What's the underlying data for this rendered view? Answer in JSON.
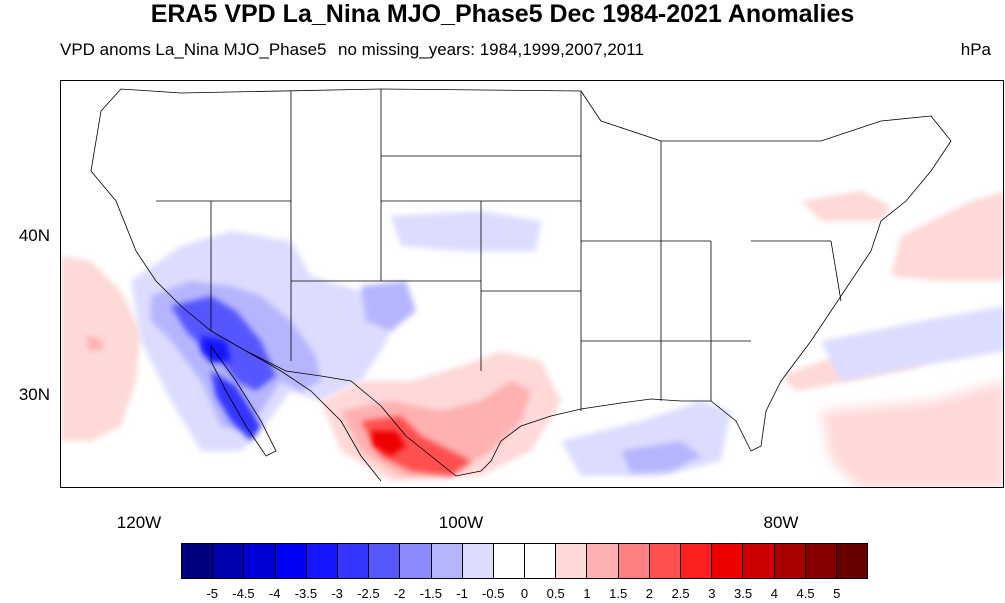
{
  "title": "ERA5 VPD La_Nina MJO_Phase5 Dec 1984-2021 Anomalies",
  "left_subtitle": "VPD anoms La_Nina MJO_Phase5",
  "center_subtitle": "no missing_years: 1984,1999,2007,2011",
  "units": "hPa",
  "latitude_labels": [
    "40N",
    "30N"
  ],
  "longitude_labels": [
    "120W",
    "100W",
    "80W"
  ],
  "colorbar": {
    "labels": [
      "-5",
      "-4.5",
      "-4",
      "-3.5",
      "-3",
      "-2.5",
      "-2",
      "-1.5",
      "-1",
      "-0.5",
      "0",
      "0.5",
      "1",
      "1.5",
      "2",
      "2.5",
      "3",
      "3.5",
      "4",
      "4.5",
      "5"
    ],
    "colors": [
      "#000080",
      "#0000b0",
      "#0000d6",
      "#0000f5",
      "#1717ff",
      "#3535ff",
      "#5757ff",
      "#8b8bff",
      "#b5b5ff",
      "#dcdcff",
      "#ffffff",
      "#ffffff",
      "#ffd8d8",
      "#ffb0b0",
      "#ff8080",
      "#ff5050",
      "#ff2020",
      "#ee0000",
      "#cc0000",
      "#aa0000",
      "#880000",
      "#680000"
    ]
  },
  "colors": {
    "negative": "#0000d6",
    "positive": "#ee0000",
    "coastline": "#000000"
  }
}
